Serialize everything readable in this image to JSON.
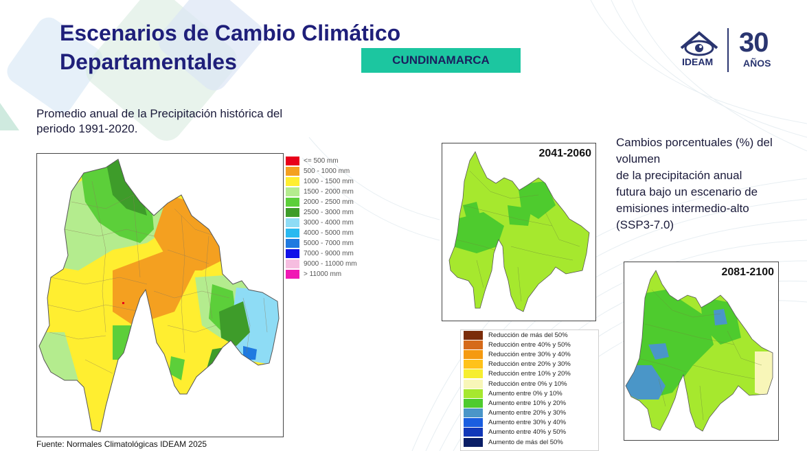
{
  "title_line1": "Escenarios de Cambio Climático",
  "title_line2": "Departamentales",
  "department_badge": "CUNDINAMARCA",
  "logo": {
    "ideam_text": "IDEAM",
    "years_number": "30",
    "years_word": "AÑOS"
  },
  "historical_title": "Promedio anual de la Precipitación histórica del periodo 1991-2020.",
  "change_title_lines": [
    "Cambios porcentuales (%) del",
    "volumen",
    "de la precipitación anual",
    "futura bajo un escenario de",
    "emisiones intermedio-alto",
    "(SSP3-7.0)"
  ],
  "period_1": "2041-2060",
  "period_2": "2081-2100",
  "source": "Fuente: Normales Climatológicas IDEAM 2025",
  "precip_legend": [
    {
      "label": "<= 500 mm",
      "color": "#e8001a"
    },
    {
      "label": "500 - 1000 mm",
      "color": "#f4a020"
    },
    {
      "label": "1000 - 1500 mm",
      "color": "#ffee30"
    },
    {
      "label": "1500 - 2000 mm",
      "color": "#b4ec8e"
    },
    {
      "label": "2000 - 2500 mm",
      "color": "#5ccf3a"
    },
    {
      "label": "2500 - 3000 mm",
      "color": "#3e9c2a"
    },
    {
      "label": "3000 - 4000 mm",
      "color": "#8edcf5"
    },
    {
      "label": "4000 - 5000 mm",
      "color": "#2ab9f0"
    },
    {
      "label": "5000 - 7000 mm",
      "color": "#1f7ae0"
    },
    {
      "label": "7000 - 9000 mm",
      "color": "#1010e8"
    },
    {
      "label": "9000 - 11000 mm",
      "color": "#f6bde0"
    },
    {
      "label": "> 11000 mm",
      "color": "#f018b4"
    }
  ],
  "change_legend": [
    {
      "label": "Reducción de más del 50%",
      "color": "#7a2c0a"
    },
    {
      "label": "Reducción entre 40% y 50%",
      "color": "#d56a1a"
    },
    {
      "label": "Reducción entre 30% y 40%",
      "color": "#f59a10"
    },
    {
      "label": "Reducción entre 20% y 30%",
      "color": "#ffc21a"
    },
    {
      "label": "Reducción entre 10% y 20%",
      "color": "#f6ee30"
    },
    {
      "label": "Reducción entre 0% y 10%",
      "color": "#f8f6b8"
    },
    {
      "label": "Aumento entre 0% y 10%",
      "color": "#a6e82e"
    },
    {
      "label": "Aumento entre 10% y 20%",
      "color": "#4ecb2e"
    },
    {
      "label": "Aumento entre 20% y 30%",
      "color": "#4a96c8"
    },
    {
      "label": "Aumento entre 30% y 40%",
      "color": "#1a5ee0"
    },
    {
      "label": "Aumento entre 40% y 50%",
      "color": "#1238b8"
    },
    {
      "label": "Aumento de más del 50%",
      "color": "#0a1e66"
    }
  ]
}
